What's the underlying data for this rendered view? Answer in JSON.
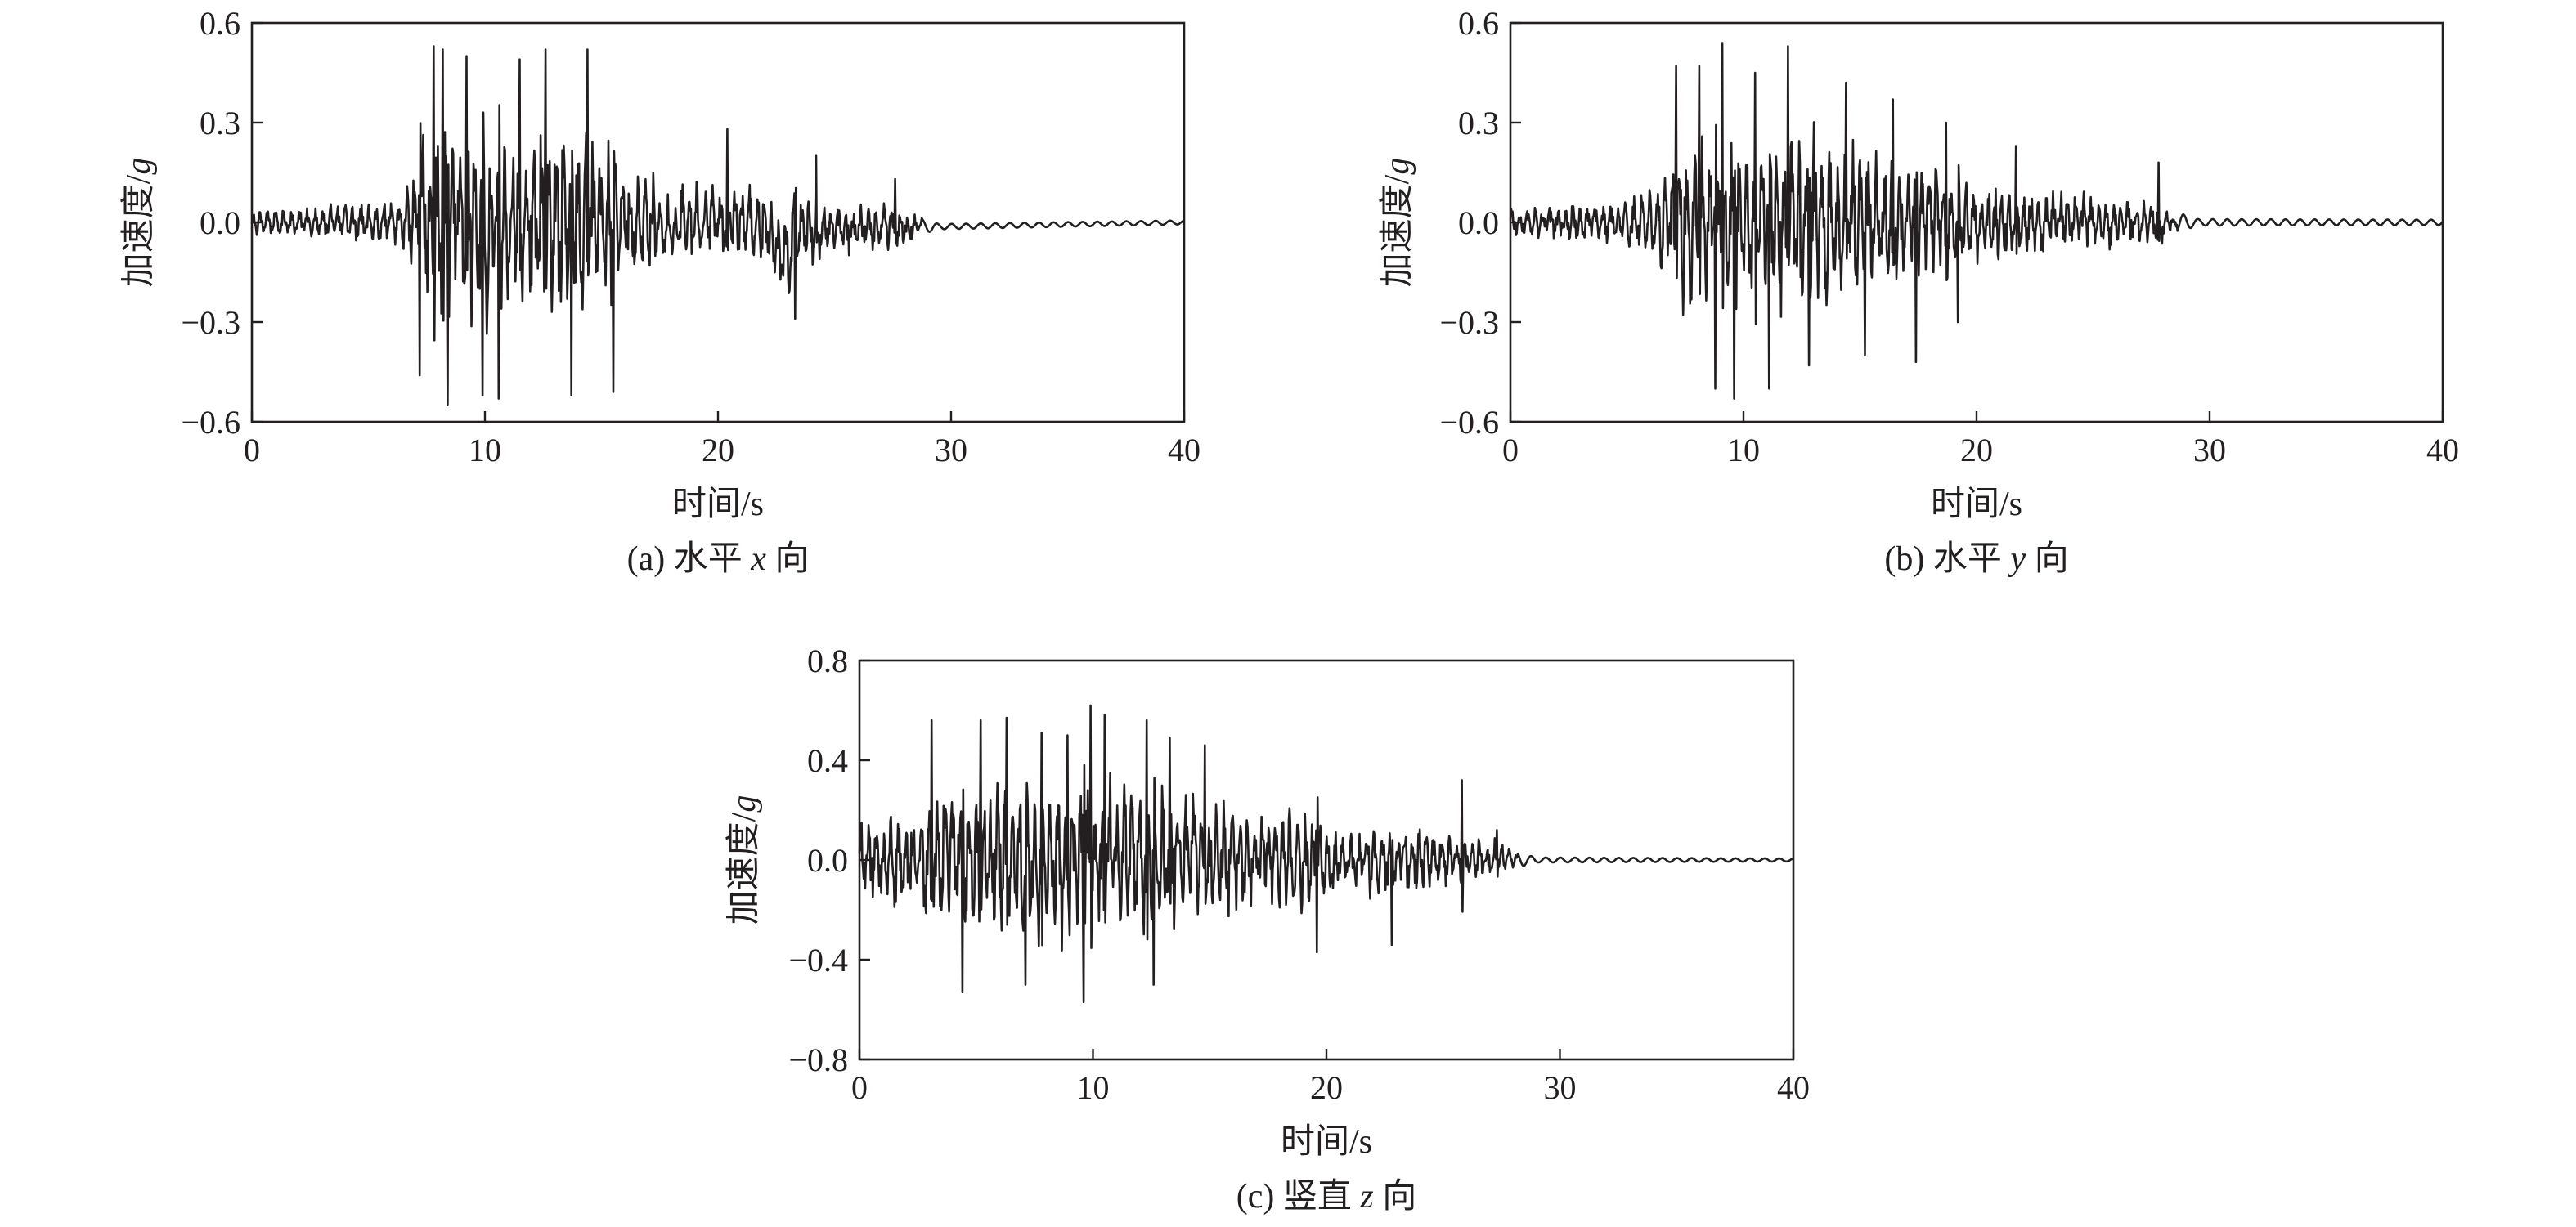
{
  "figure": {
    "colors": {
      "trace": "#231f20",
      "axes": "#231f20",
      "background": "#ffffff"
    }
  },
  "chart_data": [
    {
      "id": "a",
      "type": "line",
      "caption_prefix": "(a) 水平 ",
      "caption_var": "x",
      "caption_suffix": " 向",
      "xlabel": "时间/s",
      "ylabel_prefix": "加速度/",
      "ylabel_var": "g",
      "xlim": [
        0,
        40
      ],
      "ylim": [
        -0.6,
        0.6
      ],
      "xticks": [
        0,
        10,
        20,
        30,
        40
      ],
      "yticks": [
        -0.6,
        -0.3,
        0.0,
        0.3,
        0.6
      ],
      "ytick_labels": [
        "−0.6",
        "−0.3",
        "0.0",
        "0.3",
        "0.6"
      ],
      "grid": false,
      "series": [
        {
          "envelope": [
            [
              0,
              0.06
            ],
            [
              6,
              0.11
            ],
            [
              7,
              0.3
            ],
            [
              7.5,
              0.52
            ],
            [
              9,
              0.54
            ],
            [
              13,
              0.52
            ],
            [
              15,
              0.5
            ],
            [
              16,
              0.28
            ],
            [
              18,
              0.22
            ],
            [
              22,
              0.2
            ],
            [
              23,
              0.25
            ],
            [
              25,
              0.13
            ],
            [
              28,
              0.12
            ],
            [
              28.8,
              0.02
            ],
            [
              29.5,
              0.008
            ],
            [
              40,
              0.006
            ]
          ],
          "peaks": [
            [
              7.2,
              -0.46
            ],
            [
              7.8,
              0.53
            ],
            [
              8.2,
              0.52
            ],
            [
              8.4,
              -0.55
            ],
            [
              9.2,
              0.5
            ],
            [
              9.9,
              -0.52
            ],
            [
              10.6,
              -0.53
            ],
            [
              11.5,
              0.49
            ],
            [
              12.6,
              0.52
            ],
            [
              13.7,
              -0.52
            ],
            [
              14.4,
              0.52
            ],
            [
              15.5,
              -0.51
            ],
            [
              20.4,
              0.28
            ],
            [
              23.3,
              -0.29
            ],
            [
              24.2,
              0.2
            ],
            [
              27.6,
              0.13
            ]
          ],
          "mean_offset": [
            [
              0,
              0
            ],
            [
              22,
              0
            ],
            [
              23,
              -0.12
            ],
            [
              23.6,
              -0.02
            ],
            [
              40,
              0
            ]
          ]
        }
      ]
    },
    {
      "id": "b",
      "type": "line",
      "caption_prefix": "(b) 水平 ",
      "caption_var": "y",
      "caption_suffix": " 向",
      "xlabel": "时间/s",
      "ylabel_prefix": "加速度/",
      "ylabel_var": "g",
      "xlim": [
        0,
        40
      ],
      "ylim": [
        -0.6,
        0.6
      ],
      "xticks": [
        0,
        10,
        20,
        30,
        40
      ],
      "yticks": [
        -0.6,
        -0.3,
        0.0,
        0.3,
        0.6
      ],
      "ytick_labels": [
        "−0.6",
        "−0.3",
        "0.0",
        "0.3",
        "0.6"
      ],
      "grid": false,
      "series": [
        {
          "envelope": [
            [
              0,
              0.07
            ],
            [
              5,
              0.12
            ],
            [
              6,
              0.2
            ],
            [
              7,
              0.48
            ],
            [
              9,
              0.52
            ],
            [
              12,
              0.5
            ],
            [
              14,
              0.45
            ],
            [
              17,
              0.36
            ],
            [
              19,
              0.24
            ],
            [
              22,
              0.18
            ],
            [
              26,
              0.13
            ],
            [
              27.8,
              0.12
            ],
            [
              28.6,
              0.03
            ],
            [
              29.5,
              0.01
            ],
            [
              40,
              0.008
            ]
          ],
          "peaks": [
            [
              7.1,
              0.47
            ],
            [
              8.1,
              0.47
            ],
            [
              8.8,
              -0.5
            ],
            [
              9.1,
              0.54
            ],
            [
              9.6,
              -0.53
            ],
            [
              10.5,
              0.45
            ],
            [
              11.1,
              -0.5
            ],
            [
              11.9,
              0.53
            ],
            [
              12.8,
              -0.43
            ],
            [
              14.4,
              0.42
            ],
            [
              15.2,
              -0.4
            ],
            [
              16.4,
              0.37
            ],
            [
              17.4,
              -0.42
            ],
            [
              18.7,
              0.3
            ],
            [
              19.2,
              -0.3
            ],
            [
              21.7,
              0.23
            ],
            [
              27.8,
              0.18
            ]
          ],
          "mean_offset": [
            [
              0,
              0
            ],
            [
              40,
              0
            ]
          ]
        }
      ]
    },
    {
      "id": "c",
      "type": "line",
      "caption_prefix": "(c) 竖直 ",
      "caption_var": "z",
      "caption_suffix": " 向",
      "xlabel": "时间/s",
      "ylabel_prefix": "加速度/",
      "ylabel_var": "g",
      "xlim": [
        0,
        40
      ],
      "ylim": [
        -0.8,
        0.8
      ],
      "xticks": [
        0,
        10,
        20,
        30,
        40
      ],
      "yticks": [
        -0.8,
        -0.4,
        0.0,
        0.4,
        0.8
      ],
      "ytick_labels": [
        "−0.8",
        "−0.4",
        "0.0",
        "0.4",
        "0.8"
      ],
      "grid": false,
      "series": [
        {
          "envelope": [
            [
              0,
              0.28
            ],
            [
              2,
              0.32
            ],
            [
              3,
              0.5
            ],
            [
              5,
              0.55
            ],
            [
              10,
              0.58
            ],
            [
              13,
              0.5
            ],
            [
              15,
              0.42
            ],
            [
              17,
              0.32
            ],
            [
              19,
              0.38
            ],
            [
              21,
              0.24
            ],
            [
              23,
              0.28
            ],
            [
              26,
              0.16
            ],
            [
              27.5,
              0.13
            ],
            [
              28.2,
              0.03
            ],
            [
              29,
              0.01
            ],
            [
              40,
              0.006
            ]
          ],
          "peaks": [
            [
              3.1,
              0.56
            ],
            [
              4.4,
              -0.53
            ],
            [
              5.2,
              0.56
            ],
            [
              6.3,
              0.57
            ],
            [
              7.1,
              -0.5
            ],
            [
              7.8,
              0.51
            ],
            [
              8.9,
              0.5
            ],
            [
              9.6,
              -0.57
            ],
            [
              9.9,
              0.62
            ],
            [
              10.5,
              0.58
            ],
            [
              12.3,
              0.56
            ],
            [
              12.6,
              -0.5
            ],
            [
              13.3,
              0.49
            ],
            [
              14.8,
              0.46
            ],
            [
              19.6,
              0.44
            ],
            [
              19.6,
              -0.37
            ],
            [
              22.8,
              -0.34
            ],
            [
              25.8,
              0.32
            ],
            [
              27.3,
              0.12
            ]
          ],
          "mean_offset": [
            [
              0,
              0
            ],
            [
              40,
              0
            ]
          ]
        }
      ]
    }
  ]
}
